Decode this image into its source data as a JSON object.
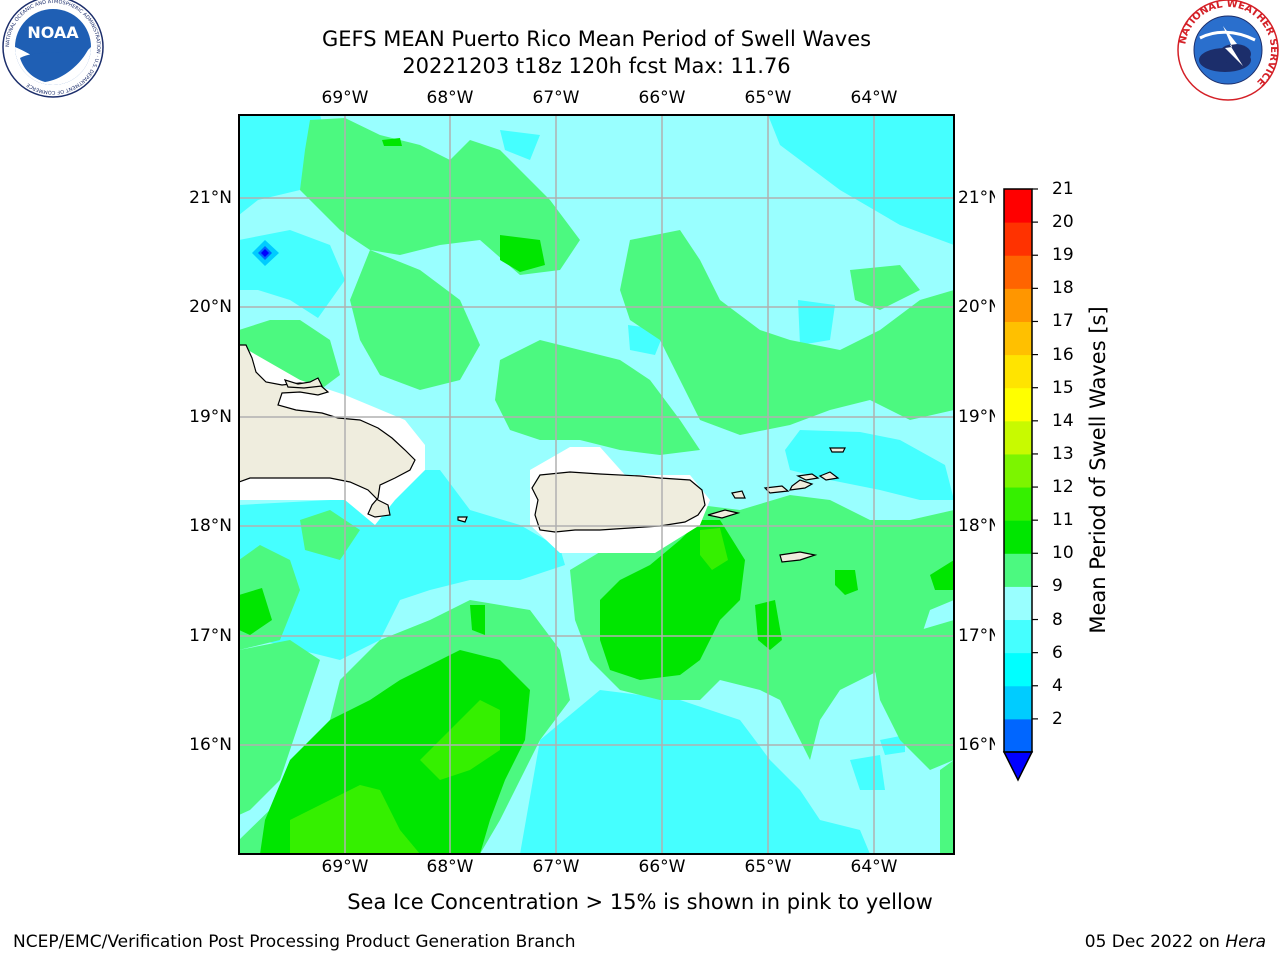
{
  "title_line1": "GEFS MEAN Puerto Rico Mean Period of Swell Waves",
  "title_line2": "20221203 t18z 120h fcst   Max: 11.76",
  "map": {
    "lon_ticks": [
      "69°W",
      "68°W",
      "67°W",
      "66°W",
      "65°W",
      "64°W"
    ],
    "lat_ticks": [
      "21°N",
      "20°N",
      "19°N",
      "18°N",
      "17°N",
      "16°N"
    ],
    "lon_range": [
      -70.0,
      -63.25
    ],
    "lat_range": [
      15.0,
      21.75
    ],
    "land_color": "#efedde",
    "grid_color": "#b0b0b0"
  },
  "colorbar": {
    "label": "Mean Period of Swell Waves [s]",
    "tick_labels": [
      "21",
      "20",
      "19",
      "18",
      "17",
      "16",
      "15",
      "14",
      "13",
      "12",
      "11",
      "10",
      "9",
      "8",
      "6",
      "4",
      "2"
    ],
    "bounds": [
      2,
      4,
      6,
      8,
      9,
      10,
      11,
      12,
      13,
      14,
      15,
      16,
      17,
      18,
      19,
      20,
      21
    ],
    "colors": [
      "#0066ff",
      "#00ccff",
      "#00ffff",
      "#45ffff",
      "#99ffff",
      "#4cf980",
      "#00e600",
      "#35f000",
      "#7cf500",
      "#c8fa00",
      "#ffff00",
      "#ffe400",
      "#ffc000",
      "#ff9600",
      "#ff6400",
      "#ff3200",
      "#ff0000"
    ],
    "extend_color": "#0000ff"
  },
  "caption": "Sea Ice Concentration > 15% is shown in pink to yellow",
  "footer_left": "NCEP/EMC/Verification Post Processing Product Generation Branch",
  "footer_date": "05 Dec 2022 on",
  "footer_host": "Hera",
  "logos": {
    "left": "NOAA",
    "left_ring": "NATIONAL OCEANIC AND ATMOSPHERIC ADMINISTRATION · U.S. DEPARTMENT OF COMMERCE",
    "right_ring": "NATIONAL WEATHER SERVICE"
  }
}
